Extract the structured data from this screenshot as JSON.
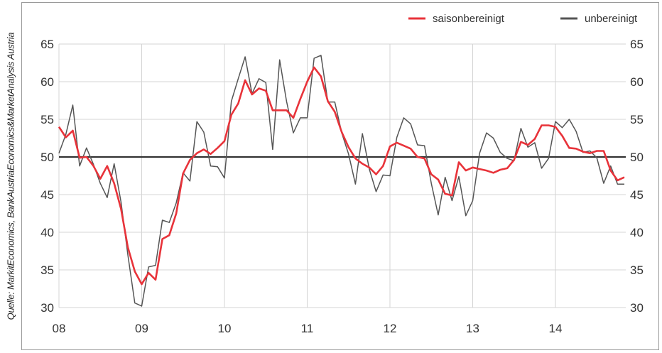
{
  "source_note": "Quelle: MarkitEconomics, BankAustriaEconomics&MarketAnalysis Austria",
  "chart_data": {
    "type": "line",
    "title": "",
    "xlabel": "",
    "ylabel": "",
    "x_unit": "year (2-digit, 2008–2014)",
    "x_ticks": [
      "08",
      "09",
      "10",
      "11",
      "12",
      "13",
      "14"
    ],
    "xlim": [
      2008,
      2014.85
    ],
    "ylim": [
      30,
      65
    ],
    "y_ticks": [
      30,
      35,
      40,
      45,
      50,
      55,
      60,
      65
    ],
    "grid": true,
    "legend_position": "top-right",
    "reference_line": 50,
    "series": [
      {
        "name": "saisonbereinigt",
        "color": "#e8333a",
        "points": [
          [
            2008.0,
            54.0
          ],
          [
            2008.083,
            52.6
          ],
          [
            2008.167,
            53.5
          ],
          [
            2008.25,
            49.9
          ],
          [
            2008.333,
            50.0
          ],
          [
            2008.417,
            48.8
          ],
          [
            2008.5,
            47.1
          ],
          [
            2008.583,
            48.8
          ],
          [
            2008.667,
            46.5
          ],
          [
            2008.75,
            43.1
          ],
          [
            2008.833,
            38.0
          ],
          [
            2008.917,
            34.8
          ],
          [
            2009.0,
            33.1
          ],
          [
            2009.083,
            34.6
          ],
          [
            2009.167,
            33.7
          ],
          [
            2009.25,
            39.1
          ],
          [
            2009.333,
            39.6
          ],
          [
            2009.417,
            42.5
          ],
          [
            2009.5,
            47.8
          ],
          [
            2009.583,
            49.6
          ],
          [
            2009.667,
            50.5
          ],
          [
            2009.75,
            51.0
          ],
          [
            2009.833,
            50.4
          ],
          [
            2009.917,
            51.2
          ],
          [
            2010.0,
            52.1
          ],
          [
            2010.083,
            55.6
          ],
          [
            2010.167,
            57.1
          ],
          [
            2010.25,
            60.2
          ],
          [
            2010.333,
            58.3
          ],
          [
            2010.417,
            59.1
          ],
          [
            2010.5,
            58.8
          ],
          [
            2010.583,
            56.2
          ],
          [
            2010.667,
            56.2
          ],
          [
            2010.75,
            56.2
          ],
          [
            2010.833,
            55.2
          ],
          [
            2010.917,
            57.7
          ],
          [
            2011.0,
            60.0
          ],
          [
            2011.083,
            61.9
          ],
          [
            2011.167,
            60.7
          ],
          [
            2011.25,
            57.4
          ],
          [
            2011.333,
            56.0
          ],
          [
            2011.417,
            53.3
          ],
          [
            2011.5,
            51.3
          ],
          [
            2011.583,
            49.8
          ],
          [
            2011.667,
            49.1
          ],
          [
            2011.75,
            48.6
          ],
          [
            2011.833,
            47.7
          ],
          [
            2011.917,
            48.8
          ],
          [
            2012.0,
            51.4
          ],
          [
            2012.083,
            51.9
          ],
          [
            2012.167,
            51.5
          ],
          [
            2012.25,
            51.1
          ],
          [
            2012.333,
            50.0
          ],
          [
            2012.417,
            49.8
          ],
          [
            2012.5,
            47.7
          ],
          [
            2012.583,
            47.0
          ],
          [
            2012.667,
            45.1
          ],
          [
            2012.75,
            44.9
          ],
          [
            2012.833,
            49.3
          ],
          [
            2012.917,
            48.2
          ],
          [
            2013.0,
            48.6
          ],
          [
            2013.083,
            48.4
          ],
          [
            2013.167,
            48.2
          ],
          [
            2013.25,
            47.9
          ],
          [
            2013.333,
            48.3
          ],
          [
            2013.417,
            48.5
          ],
          [
            2013.5,
            49.6
          ],
          [
            2013.583,
            52.0
          ],
          [
            2013.667,
            51.6
          ],
          [
            2013.75,
            52.4
          ],
          [
            2013.833,
            54.2
          ],
          [
            2013.917,
            54.2
          ],
          [
            2014.0,
            54.0
          ],
          [
            2014.083,
            52.8
          ],
          [
            2014.167,
            51.2
          ],
          [
            2014.25,
            51.1
          ],
          [
            2014.333,
            50.7
          ],
          [
            2014.417,
            50.5
          ],
          [
            2014.5,
            50.8
          ],
          [
            2014.583,
            50.8
          ],
          [
            2014.667,
            48.2
          ],
          [
            2014.75,
            46.9
          ],
          [
            2014.833,
            47.3
          ]
        ]
      },
      {
        "name": "unbereinigt",
        "color": "#555555",
        "points": [
          [
            2008.0,
            50.5
          ],
          [
            2008.083,
            53.0
          ],
          [
            2008.167,
            56.9
          ],
          [
            2008.25,
            48.8
          ],
          [
            2008.333,
            51.2
          ],
          [
            2008.417,
            49.0
          ],
          [
            2008.5,
            46.5
          ],
          [
            2008.583,
            44.6
          ],
          [
            2008.667,
            49.1
          ],
          [
            2008.75,
            44.0
          ],
          [
            2008.833,
            37.0
          ],
          [
            2008.917,
            30.6
          ],
          [
            2009.0,
            30.2
          ],
          [
            2009.083,
            35.4
          ],
          [
            2009.167,
            35.6
          ],
          [
            2009.25,
            41.6
          ],
          [
            2009.333,
            41.3
          ],
          [
            2009.417,
            43.9
          ],
          [
            2009.5,
            47.9
          ],
          [
            2009.583,
            46.8
          ],
          [
            2009.667,
            54.7
          ],
          [
            2009.75,
            53.3
          ],
          [
            2009.833,
            48.8
          ],
          [
            2009.917,
            48.7
          ],
          [
            2010.0,
            47.2
          ],
          [
            2010.083,
            57.4
          ],
          [
            2010.167,
            60.4
          ],
          [
            2010.25,
            63.3
          ],
          [
            2010.333,
            58.4
          ],
          [
            2010.417,
            60.4
          ],
          [
            2010.5,
            59.9
          ],
          [
            2010.583,
            51.0
          ],
          [
            2010.667,
            62.9
          ],
          [
            2010.75,
            57.4
          ],
          [
            2010.833,
            53.2
          ],
          [
            2010.917,
            55.2
          ],
          [
            2011.0,
            55.2
          ],
          [
            2011.083,
            63.1
          ],
          [
            2011.167,
            63.5
          ],
          [
            2011.25,
            57.3
          ],
          [
            2011.333,
            57.3
          ],
          [
            2011.417,
            53.2
          ],
          [
            2011.5,
            50.4
          ],
          [
            2011.583,
            46.4
          ],
          [
            2011.667,
            53.1
          ],
          [
            2011.75,
            48.4
          ],
          [
            2011.833,
            45.4
          ],
          [
            2011.917,
            47.6
          ],
          [
            2012.0,
            47.5
          ],
          [
            2012.083,
            52.6
          ],
          [
            2012.167,
            55.2
          ],
          [
            2012.25,
            54.4
          ],
          [
            2012.333,
            51.6
          ],
          [
            2012.417,
            51.5
          ],
          [
            2012.5,
            46.5
          ],
          [
            2012.583,
            42.3
          ],
          [
            2012.667,
            47.3
          ],
          [
            2012.75,
            44.2
          ],
          [
            2012.833,
            47.4
          ],
          [
            2012.917,
            42.2
          ],
          [
            2013.0,
            44.2
          ],
          [
            2013.083,
            50.5
          ],
          [
            2013.167,
            53.2
          ],
          [
            2013.25,
            52.5
          ],
          [
            2013.333,
            50.6
          ],
          [
            2013.417,
            49.8
          ],
          [
            2013.5,
            49.5
          ],
          [
            2013.583,
            53.8
          ],
          [
            2013.667,
            51.3
          ],
          [
            2013.75,
            51.9
          ],
          [
            2013.833,
            48.5
          ],
          [
            2013.917,
            49.8
          ],
          [
            2014.0,
            54.7
          ],
          [
            2014.083,
            53.9
          ],
          [
            2014.167,
            55.0
          ],
          [
            2014.25,
            53.4
          ],
          [
            2014.333,
            50.6
          ],
          [
            2014.417,
            50.8
          ],
          [
            2014.5,
            49.9
          ],
          [
            2014.583,
            46.5
          ],
          [
            2014.667,
            48.8
          ],
          [
            2014.75,
            46.4
          ],
          [
            2014.833,
            46.4
          ]
        ]
      }
    ]
  }
}
